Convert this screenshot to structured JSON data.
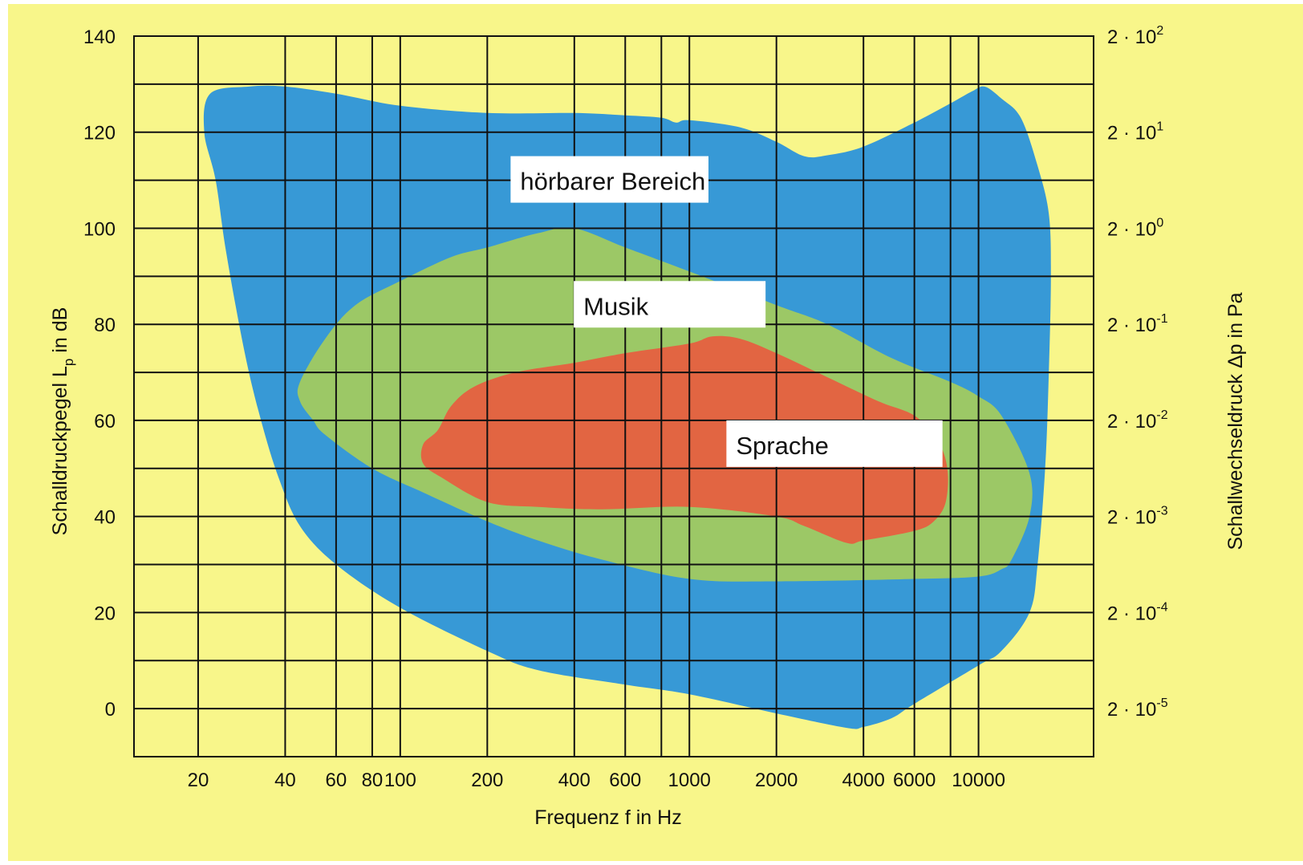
{
  "chart_data": {
    "type": "area",
    "colors": {
      "background": "#f8f68a",
      "hoerbar": "#3799d6",
      "musik": "#9cc866",
      "sprache": "#e26542",
      "label_box": "#ffffff",
      "grid": "#111111"
    },
    "xlabel": "Frequenz f in Hz",
    "ylabel_main": "Schalldruckpegel L",
    "ylabel_sub": "p",
    "ylabel_tail": " in dB",
    "ylabel_right": "Schallwechseldruck  Δp in Pa",
    "xscale": "log",
    "xlim": [
      12,
      25000
    ],
    "ylim": [
      -10,
      140
    ],
    "grid": true,
    "x_ticks": [
      {
        "value": 20,
        "label": "20"
      },
      {
        "value": 40,
        "label": "40"
      },
      {
        "value": 60,
        "label": "60"
      },
      {
        "value": 80,
        "label": "80"
      },
      {
        "value": 100,
        "label": "100"
      },
      {
        "value": 200,
        "label": "200"
      },
      {
        "value": 400,
        "label": "400"
      },
      {
        "value": 600,
        "label": "600"
      },
      {
        "value": 1000,
        "label": "1000"
      },
      {
        "value": 2000,
        "label": "2000"
      },
      {
        "value": 4000,
        "label": "4000"
      },
      {
        "value": 6000,
        "label": "6000"
      },
      {
        "value": 10000,
        "label": "10000"
      }
    ],
    "x_gridlines": [
      20,
      40,
      60,
      80,
      100,
      200,
      400,
      600,
      800,
      1000,
      2000,
      4000,
      6000,
      8000,
      10000
    ],
    "y_ticks": [
      {
        "value": 0,
        "label": "0"
      },
      {
        "value": 20,
        "label": "20"
      },
      {
        "value": 40,
        "label": "40"
      },
      {
        "value": 60,
        "label": "60"
      },
      {
        "value": 80,
        "label": "80"
      },
      {
        "value": 100,
        "label": "100"
      },
      {
        "value": 120,
        "label": "120"
      },
      {
        "value": 140,
        "label": "140"
      }
    ],
    "y_gridlines": [
      0,
      10,
      20,
      30,
      40,
      50,
      60,
      70,
      80,
      90,
      100,
      110,
      120,
      130,
      140
    ],
    "y_right_ticks": [
      {
        "value": 0,
        "base": "2 · 10",
        "exp": "-5"
      },
      {
        "value": 20,
        "base": "2 · 10",
        "exp": "-4"
      },
      {
        "value": 40,
        "base": "2 · 10",
        "exp": "-3"
      },
      {
        "value": 60,
        "base": "2 · 10",
        "exp": "-2"
      },
      {
        "value": 80,
        "base": "2 · 10",
        "exp": "-1"
      },
      {
        "value": 100,
        "base": "2 · 10",
        "exp": "0"
      },
      {
        "value": 120,
        "base": "2 · 10",
        "exp": "1"
      },
      {
        "value": 140,
        "base": "2 · 10",
        "exp": "2"
      }
    ],
    "regions": [
      {
        "name": "hörbarer Bereich",
        "label_pos": {
          "x": 260,
          "y": 110
        },
        "label_box_width": 1.55,
        "color": "hoerbar",
        "points": [
          [
            22,
            128
          ],
          [
            30,
            129.5
          ],
          [
            40,
            129.5
          ],
          [
            60,
            128
          ],
          [
            100,
            125.5
          ],
          [
            200,
            124
          ],
          [
            400,
            124
          ],
          [
            600,
            123.5
          ],
          [
            800,
            123
          ],
          [
            900,
            122
          ],
          [
            1000,
            122.5
          ],
          [
            1500,
            121
          ],
          [
            2000,
            118
          ],
          [
            2500,
            115
          ],
          [
            3000,
            115.2
          ],
          [
            4000,
            117
          ],
          [
            6000,
            122
          ],
          [
            8000,
            126
          ],
          [
            9500,
            128.5
          ],
          [
            10500,
            129.5
          ],
          [
            12000,
            127
          ],
          [
            14000,
            123
          ],
          [
            16000,
            113
          ],
          [
            17500,
            103
          ],
          [
            17800,
            90
          ],
          [
            17500,
            70
          ],
          [
            17000,
            50
          ],
          [
            16000,
            30
          ],
          [
            15000,
            20
          ],
          [
            12000,
            12
          ],
          [
            10000,
            9
          ],
          [
            6000,
            1
          ],
          [
            5000,
            -2
          ],
          [
            4000,
            -3.8
          ],
          [
            3500,
            -4
          ],
          [
            2000,
            -1
          ],
          [
            1000,
            3
          ],
          [
            600,
            5
          ],
          [
            300,
            8
          ],
          [
            200,
            12
          ],
          [
            100,
            21
          ],
          [
            60,
            30
          ],
          [
            45,
            38
          ],
          [
            38,
            48
          ],
          [
            33,
            60
          ],
          [
            29,
            74
          ],
          [
            25,
            95
          ],
          [
            23,
            110
          ],
          [
            21,
            120
          ]
        ]
      },
      {
        "name": "Musik",
        "label_pos": {
          "x": 430,
          "y": 84
        },
        "label_box_width": 1.5,
        "color": "musik",
        "points": [
          [
            45,
            68
          ],
          [
            55,
            77
          ],
          [
            70,
            84
          ],
          [
            100,
            89
          ],
          [
            150,
            94
          ],
          [
            200,
            96
          ],
          [
            300,
            99
          ],
          [
            400,
            100
          ],
          [
            600,
            96
          ],
          [
            1000,
            91
          ],
          [
            2000,
            84
          ],
          [
            3000,
            80
          ],
          [
            5000,
            73
          ],
          [
            8000,
            68
          ],
          [
            10000,
            65
          ],
          [
            12000,
            61
          ],
          [
            15000,
            49
          ],
          [
            15000,
            40
          ],
          [
            13000,
            31
          ],
          [
            12000,
            29
          ],
          [
            10000,
            27.5
          ],
          [
            6000,
            27
          ],
          [
            2000,
            26.5
          ],
          [
            1000,
            27
          ],
          [
            500,
            31
          ],
          [
            300,
            35
          ],
          [
            200,
            39
          ],
          [
            120,
            45
          ],
          [
            80,
            50
          ],
          [
            55,
            57
          ],
          [
            50,
            60
          ],
          [
            45,
            64
          ]
        ]
      },
      {
        "name": "Sprache",
        "label_pos": {
          "x": 1450,
          "y": 55
        },
        "label_box_width": 1.7,
        "color": "sprache",
        "points": [
          [
            120,
            55
          ],
          [
            135,
            58
          ],
          [
            150,
            63
          ],
          [
            180,
            67
          ],
          [
            250,
            70
          ],
          [
            400,
            72
          ],
          [
            600,
            74
          ],
          [
            1000,
            76
          ],
          [
            1200,
            77.5
          ],
          [
            1500,
            77
          ],
          [
            2000,
            74
          ],
          [
            3000,
            69
          ],
          [
            4500,
            64
          ],
          [
            6000,
            61
          ],
          [
            7200,
            56
          ],
          [
            7800,
            50
          ],
          [
            7700,
            43
          ],
          [
            7000,
            39
          ],
          [
            6000,
            37
          ],
          [
            4000,
            35
          ],
          [
            3500,
            34.5
          ],
          [
            2500,
            38
          ],
          [
            2000,
            40
          ],
          [
            1000,
            42
          ],
          [
            500,
            41.5
          ],
          [
            300,
            42
          ],
          [
            200,
            43
          ],
          [
            140,
            48
          ],
          [
            120,
            51
          ]
        ]
      }
    ]
  }
}
